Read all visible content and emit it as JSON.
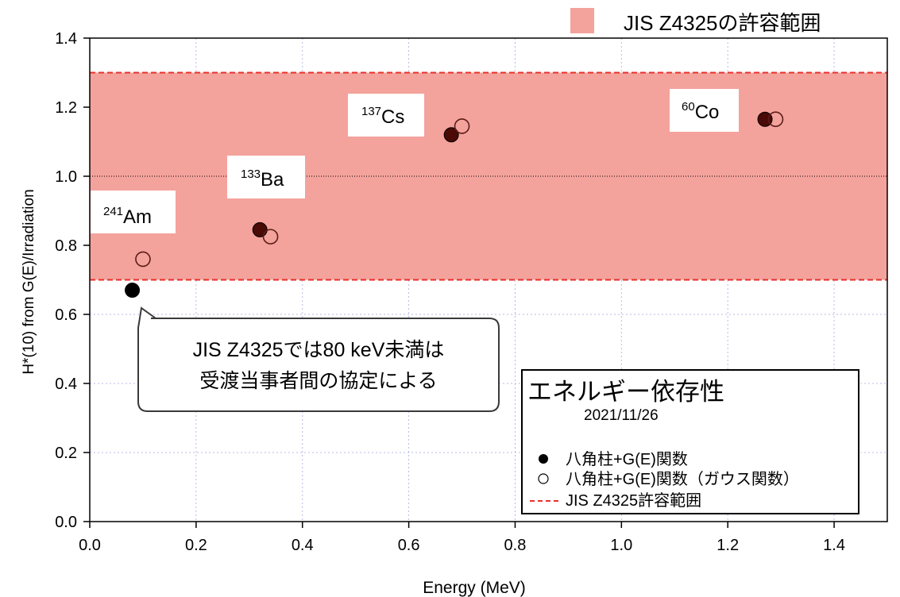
{
  "chart_data": {
    "type": "scatter",
    "xlabel": "Energy (MeV)",
    "ylabel": "H*(10) from G(E)/Irradiation",
    "xlim": [
      0.0,
      1.5
    ],
    "ylim": [
      0.0,
      1.4
    ],
    "xticks": [
      "0.0",
      "0.2",
      "0.4",
      "0.6",
      "0.8",
      "1.0",
      "1.2",
      "1.4"
    ],
    "yticks": [
      "0.0",
      "0.2",
      "0.4",
      "0.6",
      "0.8",
      "1.0",
      "1.2",
      "1.4"
    ],
    "grid": true,
    "reference_line_y": 1.0,
    "tolerance_band": {
      "low": 0.7,
      "high": 1.3,
      "color": "#f4a29c",
      "line_color": "#e8302a"
    },
    "series": [
      {
        "name": "八角柱+G(E)関数",
        "marker": "filled",
        "points": [
          {
            "x": 0.08,
            "y": 0.67,
            "color": "#000000"
          },
          {
            "x": 0.32,
            "y": 0.845,
            "color": "#4a0a06"
          },
          {
            "x": 0.68,
            "y": 1.12,
            "color": "#4a0a06"
          },
          {
            "x": 1.27,
            "y": 1.165,
            "color": "#4a0a06"
          }
        ]
      },
      {
        "name": "八角柱+G(E)関数（ガウス関数）",
        "marker": "open",
        "points": [
          {
            "x": 0.1,
            "y": 0.76
          },
          {
            "x": 0.34,
            "y": 0.825
          },
          {
            "x": 0.7,
            "y": 1.145
          },
          {
            "x": 1.29,
            "y": 1.165
          }
        ]
      }
    ],
    "isotope_labels": [
      {
        "sup": "241",
        "name": "Am"
      },
      {
        "sup": "133",
        "name": "Ba"
      },
      {
        "sup": "137",
        "name": "Cs"
      },
      {
        "sup": "60",
        "name": "Co"
      }
    ],
    "top_legend_label": "JIS Z4325の許容範囲",
    "callout_lines": [
      "JIS Z4325では80 keV未満は",
      "受渡当事者間の協定による"
    ],
    "legend": {
      "title": "エネルギー依存性",
      "date": "2021/11/26",
      "line_label": "JIS Z4325許容範囲",
      "position": "bottom-right"
    }
  }
}
